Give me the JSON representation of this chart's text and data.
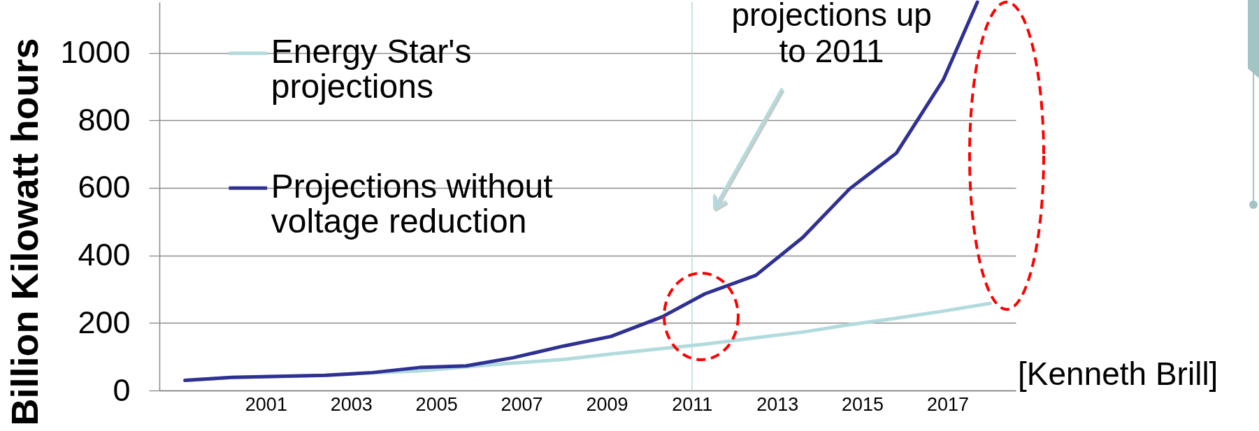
{
  "chart_data": {
    "type": "line",
    "ylabel": "Billion Kilowatt hours",
    "annotations": [
      "projections up to 2011",
      "[Kenneth Brill]"
    ],
    "x": [
      1999.1,
      2000.2,
      2001.3,
      2002.4,
      2003.5,
      2004.6,
      2005.7,
      2006.8,
      2008.0,
      2009.1,
      2010.3,
      2011.3,
      2012.5,
      2013.6,
      2014.7,
      2015.8,
      2016.9,
      2018.0
    ],
    "series": [
      {
        "name": "Energy Star's projections",
        "color": "#b2dbde",
        "values": [
          30,
          39,
          42,
          45,
          52,
          58,
          70,
          81,
          92,
          108,
          124,
          137,
          156,
          173,
          195,
          214,
          235,
          258
        ]
      },
      {
        "name": "Projections without voltage reduction",
        "color": "#2f3192",
        "x": [
          1999.1,
          2000.2,
          2001.3,
          2002.4,
          2003.5,
          2004.6,
          2005.7,
          2006.8,
          2008.0,
          2009.1,
          2010.3,
          2011.3,
          2012.5,
          2013.6,
          2014.7,
          2015.8,
          2016.9,
          2017.7
        ],
        "values": [
          30,
          39,
          42,
          45,
          53,
          68,
          73,
          97,
          132,
          160,
          218,
          286,
          341,
          453,
          597,
          703,
          920,
          1150
        ]
      }
    ],
    "xlim": [
      1998.5,
      2018.6
    ],
    "xticks": [
      2001,
      2003,
      2005,
      2007,
      2009,
      2011,
      2013,
      2015,
      2017
    ],
    "ylim": [
      0,
      1150
    ],
    "yticks": [
      0,
      200,
      400,
      600,
      800,
      1000
    ],
    "grid": "y",
    "legend": "top left",
    "ref_lines": [
      {
        "axis": "x",
        "value": 2011,
        "color": "#b2dbde"
      }
    ]
  }
}
